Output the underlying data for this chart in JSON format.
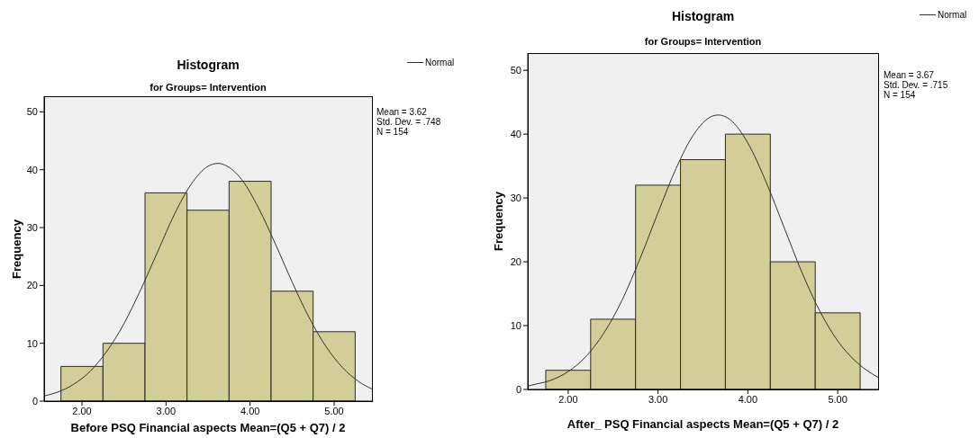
{
  "chart_data": [
    {
      "type": "histogram",
      "title": "Histogram",
      "subtitle": "for Groups= Intervention",
      "xlabel": "Before PSQ Financial aspects Mean=(Q5 + Q7) / 2",
      "ylabel": "Frequency",
      "legend": "top right",
      "annotations": [
        "Mean = 3.62",
        "Std. Dev. = .748",
        "N = 154"
      ],
      "xlim": [
        1.55,
        5.45
      ],
      "ylim": [
        0,
        52.7
      ],
      "xticks": [
        {
          "value": 2,
          "label": "2.00"
        },
        {
          "value": 3,
          "label": "3.00"
        },
        {
          "value": 4,
          "label": "4.00"
        },
        {
          "value": 5,
          "label": "5.00"
        }
      ],
      "yticks": [
        0,
        10,
        20,
        30,
        40,
        50
      ],
      "series": [
        {
          "type": "histogram",
          "color": "#d3ce97",
          "bins": [
            1.75,
            2.25,
            2.75,
            3.25,
            3.75,
            4.25,
            4.75,
            5.25
          ],
          "values": [
            6,
            10,
            36,
            33,
            38,
            19,
            12
          ]
        },
        {
          "type": "line",
          "name": "Normal",
          "color": "#333333",
          "x": [
            1.55,
            1.7,
            1.9,
            2.1,
            2.3,
            2.5,
            2.7,
            2.9,
            3.1,
            3.3,
            3.5,
            3.62,
            3.7,
            3.9,
            4.1,
            4.3,
            4.5,
            4.7,
            4.9,
            5.1,
            5.3,
            5.45
          ],
          "values": [
            0.9,
            1.5,
            2.9,
            5.2,
            8.7,
            13.4,
            19.3,
            25.8,
            32.3,
            37.5,
            40.6,
            41.1,
            40.8,
            38.3,
            33.4,
            27.2,
            20.6,
            14.5,
            9.5,
            5.8,
            3.3,
            2.1
          ]
        }
      ]
    },
    {
      "type": "histogram",
      "title": "Histogram",
      "subtitle": "for Groups= Intervention",
      "xlabel": "After_ PSQ Financial aspects Mean=(Q5 + Q7) / 2",
      "ylabel": "Frequency",
      "legend": "top right",
      "annotations": [
        "Mean = 3.67",
        "Std. Dev. = .715",
        "N = 154"
      ],
      "xlim": [
        1.55,
        5.45
      ],
      "ylim": [
        0,
        52.7
      ],
      "xticks": [
        {
          "value": 2,
          "label": "2.00"
        },
        {
          "value": 3,
          "label": "3.00"
        },
        {
          "value": 4,
          "label": "4.00"
        },
        {
          "value": 5,
          "label": "5.00"
        }
      ],
      "yticks": [
        0,
        10,
        20,
        30,
        40,
        50
      ],
      "series": [
        {
          "type": "histogram",
          "color": "#d3ce97",
          "bins": [
            1.75,
            2.25,
            2.75,
            3.25,
            3.75,
            4.25,
            4.75,
            5.25
          ],
          "values": [
            3,
            11,
            32,
            36,
            40,
            20,
            12
          ]
        },
        {
          "type": "line",
          "name": "Normal",
          "color": "#333333",
          "x": [
            1.55,
            1.6,
            1.8,
            2.0,
            2.2,
            2.4,
            2.6,
            2.8,
            3.0,
            3.2,
            3.4,
            3.6,
            3.67,
            3.8,
            4.0,
            4.2,
            4.4,
            4.6,
            4.8,
            5.0,
            5.2,
            5.4,
            5.45
          ],
          "values": [
            0.5,
            0.7,
            1.4,
            2.8,
            5.2,
            8.9,
            14.0,
            20.5,
            27.7,
            34.6,
            40.0,
            42.8,
            43.0,
            42.3,
            38.6,
            32.6,
            25.5,
            18.4,
            12.3,
            7.6,
            4.4,
            2.3,
            1.9
          ]
        }
      ]
    }
  ]
}
